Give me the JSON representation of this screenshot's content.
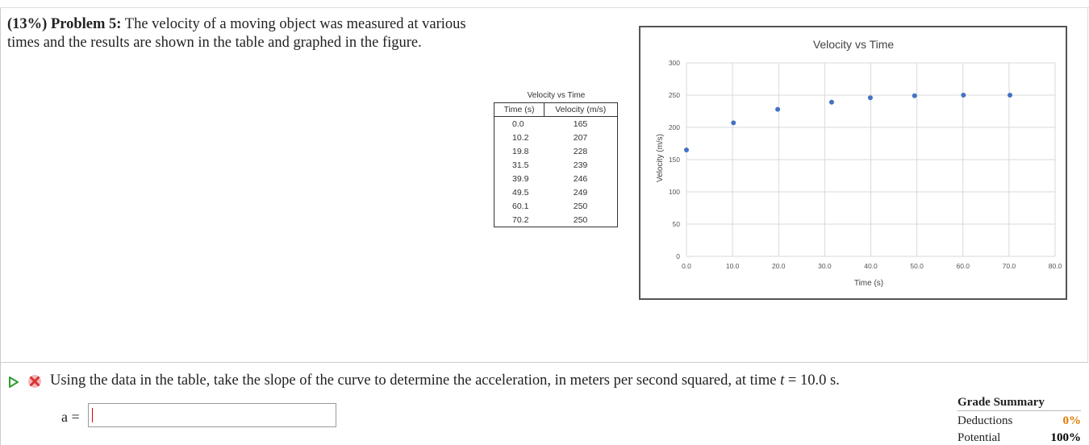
{
  "problem": {
    "weight": "(13%)",
    "label": "Problem 5:",
    "text": "The velocity of a moving object was measured at various times and the results are shown in the table and graphed in the figure."
  },
  "table": {
    "title": "Velocity vs Time",
    "headers": [
      "Time (s)",
      "Velocity (m/s)"
    ],
    "rows": [
      [
        "0.0",
        "165"
      ],
      [
        "10.2",
        "207"
      ],
      [
        "19.8",
        "228"
      ],
      [
        "31.5",
        "239"
      ],
      [
        "39.9",
        "246"
      ],
      [
        "49.5",
        "249"
      ],
      [
        "60.1",
        "250"
      ],
      [
        "70.2",
        "250"
      ]
    ]
  },
  "chart_data": {
    "type": "scatter",
    "title": "Velocity vs Time",
    "xlabel": "Time (s)",
    "ylabel": "Velocity (m/s)",
    "xlim": [
      0,
      80
    ],
    "ylim": [
      0,
      300
    ],
    "xticks": [
      "0.0",
      "10.0",
      "20.0",
      "30.0",
      "40.0",
      "50.0",
      "60.0",
      "70.0",
      "80.0"
    ],
    "yticks": [
      "0",
      "50",
      "100",
      "150",
      "200",
      "250",
      "300"
    ],
    "grid": true,
    "marker_color": "#4472c4",
    "x": [
      0.0,
      10.2,
      19.8,
      31.5,
      39.9,
      49.5,
      60.1,
      70.2
    ],
    "y": [
      165,
      207,
      228,
      239,
      246,
      249,
      250,
      250
    ]
  },
  "question": {
    "text_before": "Using the data in the table, take the slope of the curve to determine the acceleration, in meters per second squared, at time ",
    "var": "t",
    "text_after": " = 10.0 s."
  },
  "answer": {
    "label": "a =",
    "value": ""
  },
  "grade_summary": {
    "title": "Grade Summary",
    "deductions_label": "Deductions",
    "deductions_value": "0%",
    "potential_label": "Potential",
    "potential_value": "100%"
  }
}
